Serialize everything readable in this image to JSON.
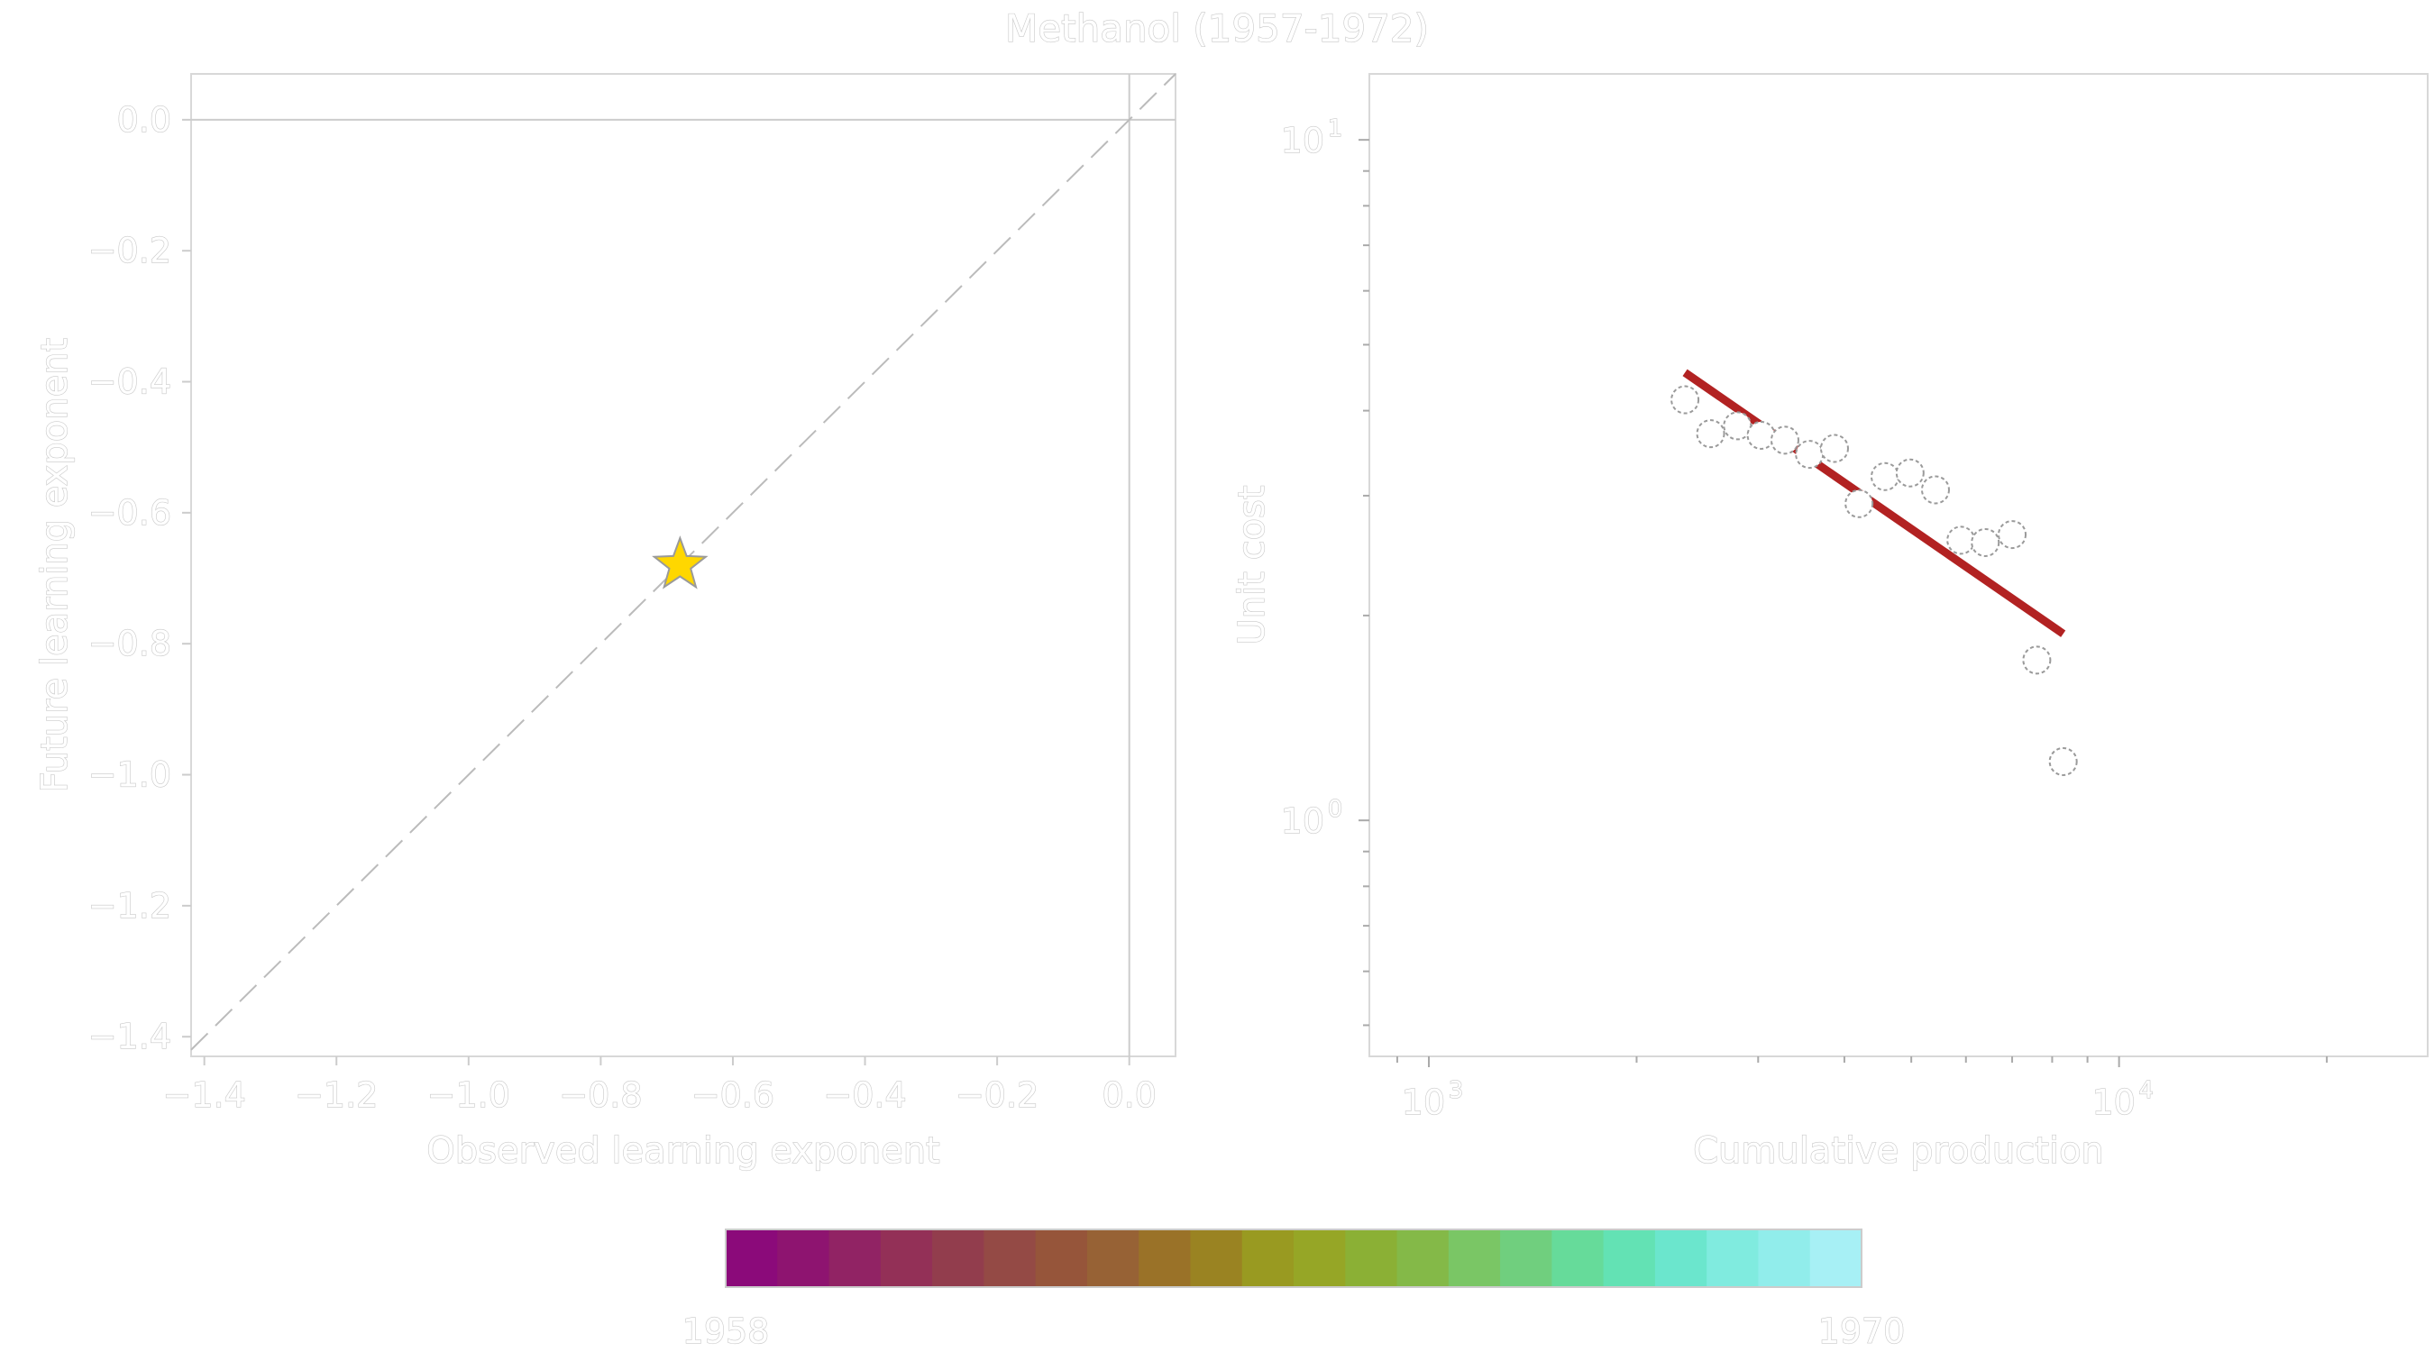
{
  "title": "Methanol (1957-1972)",
  "chart_data": [
    {
      "type": "scatter",
      "xlabel": "Observed learning exponent",
      "ylabel": "Future learning exponent",
      "xlim": [
        -1.42,
        0.07
      ],
      "ylim": [
        -1.43,
        0.07
      ],
      "x_ticks": [
        -1.4,
        -1.2,
        -1.0,
        -0.8,
        -0.6,
        -0.4,
        -0.2,
        0.0
      ],
      "y_ticks": [
        0.0,
        -0.2,
        -0.4,
        -0.6,
        -0.8,
        -1.0,
        -1.2,
        -1.4
      ],
      "x_tick_labels": [
        "−1.4",
        "−1.2",
        "−1.0",
        "−0.8",
        "−0.6",
        "−0.4",
        "−0.2",
        "0.0"
      ],
      "y_tick_labels": [
        "0.0",
        "−0.2",
        "−0.4",
        "−0.6",
        "−0.8",
        "−1.0",
        "−1.2",
        "−1.4"
      ],
      "reference_lines": {
        "horizontal_at": 0.0,
        "vertical_at": 0.0,
        "diagonal": "y = x (dashed)"
      },
      "points": [
        {
          "x": -0.68,
          "y": -0.68,
          "marker": "star",
          "color": "#FFD700"
        }
      ]
    },
    {
      "type": "scatter",
      "xlabel": "Cumulative production",
      "ylabel": "Unit cost",
      "x_scale": "log",
      "y_scale": "log",
      "xlim": [
        820,
        28000
      ],
      "ylim": [
        0.45,
        12.5
      ],
      "x_tick_labels": [
        {
          "value": 1000,
          "base": "10",
          "exp": "3"
        },
        {
          "value": 10000,
          "base": "10",
          "exp": "4"
        }
      ],
      "y_tick_labels": [
        {
          "value": 10,
          "base": "10",
          "exp": "1"
        },
        {
          "value": 1,
          "base": "10",
          "exp": "0"
        }
      ],
      "points": [
        {
          "x": 2350,
          "y": 4.15
        },
        {
          "x": 2560,
          "y": 3.7
        },
        {
          "x": 2800,
          "y": 3.8
        },
        {
          "x": 3030,
          "y": 3.68
        },
        {
          "x": 3280,
          "y": 3.62
        },
        {
          "x": 3560,
          "y": 3.45
        },
        {
          "x": 3870,
          "y": 3.52
        },
        {
          "x": 4200,
          "y": 2.92
        },
        {
          "x": 4580,
          "y": 3.2
        },
        {
          "x": 4980,
          "y": 3.24
        },
        {
          "x": 5420,
          "y": 3.06
        },
        {
          "x": 5900,
          "y": 2.58
        },
        {
          "x": 6400,
          "y": 2.56
        },
        {
          "x": 7000,
          "y": 2.63
        },
        {
          "x": 7600,
          "y": 1.72
        },
        {
          "x": 8300,
          "y": 1.22
        }
      ],
      "fit_line": {
        "x": [
          2350,
          8300
        ],
        "y": [
          4.55,
          1.88
        ],
        "color": "#B22222"
      },
      "point_style": "hollow-circle-dashed"
    }
  ],
  "colorbar": {
    "label_min": "1958",
    "label_max": "1970",
    "colors": [
      "#8B0A7A",
      "#8E1470",
      "#912364",
      "#933057",
      "#923D4D",
      "#944A45",
      "#96553A",
      "#976235",
      "#9A7228",
      "#9A8322",
      "#999A21",
      "#96A626",
      "#8BB035",
      "#84B948",
      "#7AC665",
      "#70CF7E",
      "#66DB9A",
      "#63E2B4",
      "#6BE6CD",
      "#80EBDF",
      "#91EDEB",
      "#A7F0F5"
    ]
  },
  "colors": {
    "text": "#cfcfcf",
    "axis": "#cccccc",
    "star_fill": "#FFD700",
    "fit_line": "#B22222"
  }
}
